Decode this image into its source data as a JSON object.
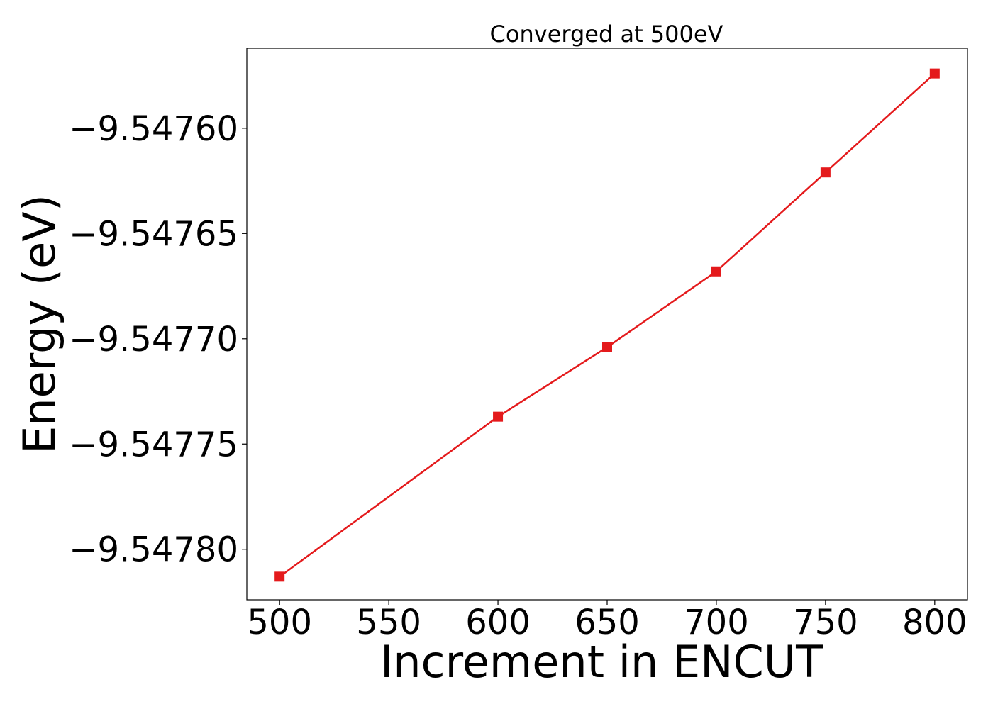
{
  "chart_data": {
    "type": "line",
    "title": "Converged at 500eV",
    "xlabel": "Increment in ENCUT",
    "ylabel": "Energy (eV)",
    "x": [
      500,
      600,
      650,
      700,
      750,
      800
    ],
    "series": [
      {
        "values": [
          -9.547813,
          -9.547737,
          -9.547704,
          -9.547668,
          -9.547621,
          -9.547574
        ],
        "color": "#e41a1c",
        "marker": "square"
      }
    ],
    "xlim": [
      485,
      815
    ],
    "ylim": [
      -9.547824,
      -9.547562
    ],
    "xticks": [
      500,
      550,
      600,
      650,
      700,
      750,
      800
    ],
    "xtick_labels": [
      "500",
      "550",
      "600",
      "650",
      "700",
      "750",
      "800"
    ],
    "yticks": [
      -9.5478,
      -9.54775,
      -9.5477,
      -9.54765,
      -9.5476
    ],
    "ytick_labels": [
      "−9.54780",
      "−9.54775",
      "−9.54770",
      "−9.54765",
      "−9.54760"
    ],
    "grid": false,
    "legend": "none"
  }
}
